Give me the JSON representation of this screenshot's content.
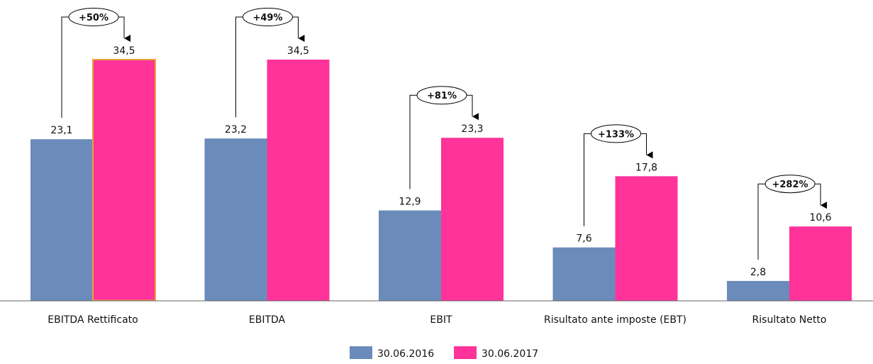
{
  "chart_data": {
    "type": "bar",
    "title": "",
    "xlabel": "",
    "ylabel": "",
    "categories": [
      "EBITDA Rettificato",
      "EBITDA",
      "EBIT",
      "Risultato ante imposte (EBT)",
      "Risultato Netto"
    ],
    "series": [
      {
        "name": "30.06.2016",
        "color": "#6B8CBA",
        "values": [
          23.1,
          23.2,
          12.9,
          7.6,
          2.8
        ],
        "labels": [
          "23,1",
          "23,2",
          "12,9",
          "7,6",
          "2,8"
        ]
      },
      {
        "name": "30.06.2017",
        "color": "#FF3399",
        "values": [
          34.5,
          34.5,
          23.3,
          17.8,
          10.6
        ],
        "labels": [
          "34,5",
          "34,5",
          "23,3",
          "17,8",
          "10,6"
        ]
      }
    ],
    "growth_annotations": [
      "+50%",
      "+49%",
      "+81%",
      "+133%",
      "+282%"
    ],
    "highlight_category_index": 0,
    "highlight_border_color": "#E8A33D",
    "legend_position": "bottom",
    "grid": false,
    "ylim": [
      0,
      40
    ]
  }
}
